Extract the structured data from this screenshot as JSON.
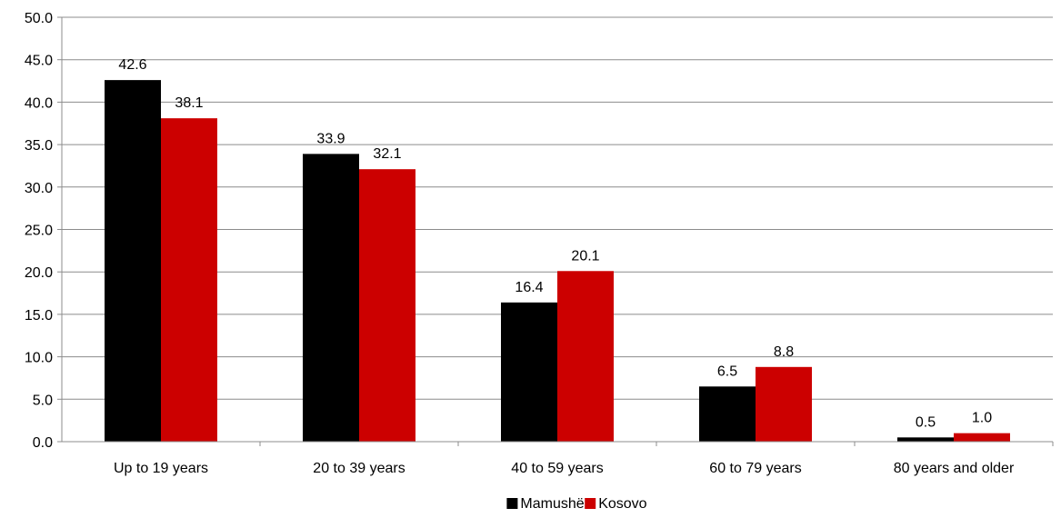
{
  "chart_data": {
    "type": "bar",
    "categories": [
      "Up to 19 years",
      "20 to 39 years",
      "40 to 59 years",
      "60 to 79 years",
      "80 years and older"
    ],
    "series": [
      {
        "name": "Mamushë",
        "color": "#000000",
        "values": [
          42.6,
          33.9,
          16.4,
          6.5,
          0.5
        ],
        "labels": [
          "42.6",
          "33.9",
          "16.4",
          "6.5",
          "0.5"
        ]
      },
      {
        "name": "Kosovo",
        "color": "#cc0000",
        "values": [
          38.1,
          32.1,
          20.1,
          8.8,
          1.0
        ],
        "labels": [
          "38.1",
          "32.1",
          "20.1",
          "8.8",
          "1.0"
        ]
      }
    ],
    "ylim": [
      0,
      50
    ],
    "yticks": [
      "0.0",
      "5.0",
      "10.0",
      "15.0",
      "20.0",
      "25.0",
      "30.0",
      "35.0",
      "40.0",
      "45.0",
      "50.0"
    ],
    "grid": true,
    "legend_position": "bottom-center"
  }
}
